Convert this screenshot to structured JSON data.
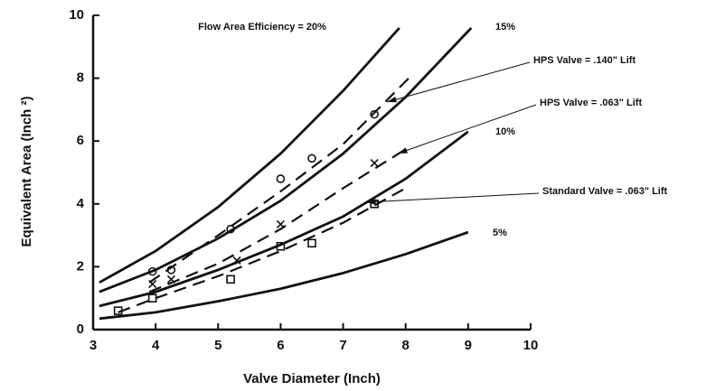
{
  "chart_data": {
    "type": "line",
    "xlabel": "Valve Diameter (Inch)",
    "ylabel": "Equivalent Area (Inch ²)",
    "xlim": [
      3,
      10
    ],
    "xticks": [
      3,
      4,
      5,
      6,
      7,
      8,
      9,
      10
    ],
    "ylim": [
      0,
      10
    ],
    "yticks": [
      0,
      2,
      4,
      6,
      8,
      10
    ],
    "series": [
      {
        "name": "Flow Area Efficiency = 20%",
        "color": "#111111",
        "dashed": false,
        "x": [
          3.1,
          4,
          5,
          6,
          7,
          7.9
        ],
        "values": [
          1.5,
          2.5,
          3.9,
          5.6,
          7.6,
          9.6
        ]
      },
      {
        "name": "15%",
        "color": "#111111",
        "dashed": false,
        "x": [
          3.1,
          4,
          5,
          6,
          7,
          8,
          9.05
        ],
        "values": [
          1.2,
          1.9,
          2.9,
          4.1,
          5.6,
          7.4,
          9.6
        ]
      },
      {
        "name": "10%",
        "color": "#111111",
        "dashed": false,
        "x": [
          3.1,
          4,
          5,
          6,
          7,
          8,
          9
        ],
        "values": [
          0.75,
          1.2,
          1.9,
          2.7,
          3.6,
          4.8,
          6.3
        ]
      },
      {
        "name": "5%",
        "color": "#111111",
        "dashed": false,
        "x": [
          3.1,
          4,
          5,
          6,
          7,
          8,
          9
        ],
        "values": [
          0.35,
          0.55,
          0.9,
          1.3,
          1.8,
          2.4,
          3.1
        ]
      },
      {
        "name": "HPS Valve = .140\" Lift",
        "color": "#111111",
        "dashed": true,
        "marker": "circle",
        "x": [
          3.9,
          5,
          6,
          7,
          8.1
        ],
        "values": [
          1.5,
          3.0,
          4.4,
          5.9,
          8.1
        ],
        "marker_x": [
          3.95,
          4.25,
          5.2,
          6.0,
          6.5,
          7.5
        ],
        "marker_values": [
          1.85,
          1.9,
          3.2,
          4.8,
          5.45,
          6.85
        ]
      },
      {
        "name": "HPS Valve = .063\" Lift",
        "color": "#111111",
        "dashed": true,
        "marker": "x",
        "x": [
          3.9,
          5,
          6,
          7,
          8.05
        ],
        "values": [
          1.2,
          2.1,
          3.2,
          4.5,
          5.8
        ],
        "marker_x": [
          3.95,
          4.25,
          5.3,
          6.0,
          7.5
        ],
        "marker_values": [
          1.45,
          1.6,
          2.2,
          3.35,
          5.3
        ]
      },
      {
        "name": "Standard Valve = .063\" Lift",
        "color": "#111111",
        "dashed": true,
        "marker": "square",
        "x": [
          3.4,
          4,
          5,
          6,
          7,
          8
        ],
        "values": [
          0.55,
          1.0,
          1.7,
          2.5,
          3.4,
          4.5
        ],
        "marker_x": [
          3.4,
          3.95,
          5.2,
          6.0,
          6.5,
          7.5
        ],
        "marker_values": [
          0.6,
          1.0,
          1.6,
          2.65,
          2.75,
          4.0
        ]
      }
    ]
  }
}
